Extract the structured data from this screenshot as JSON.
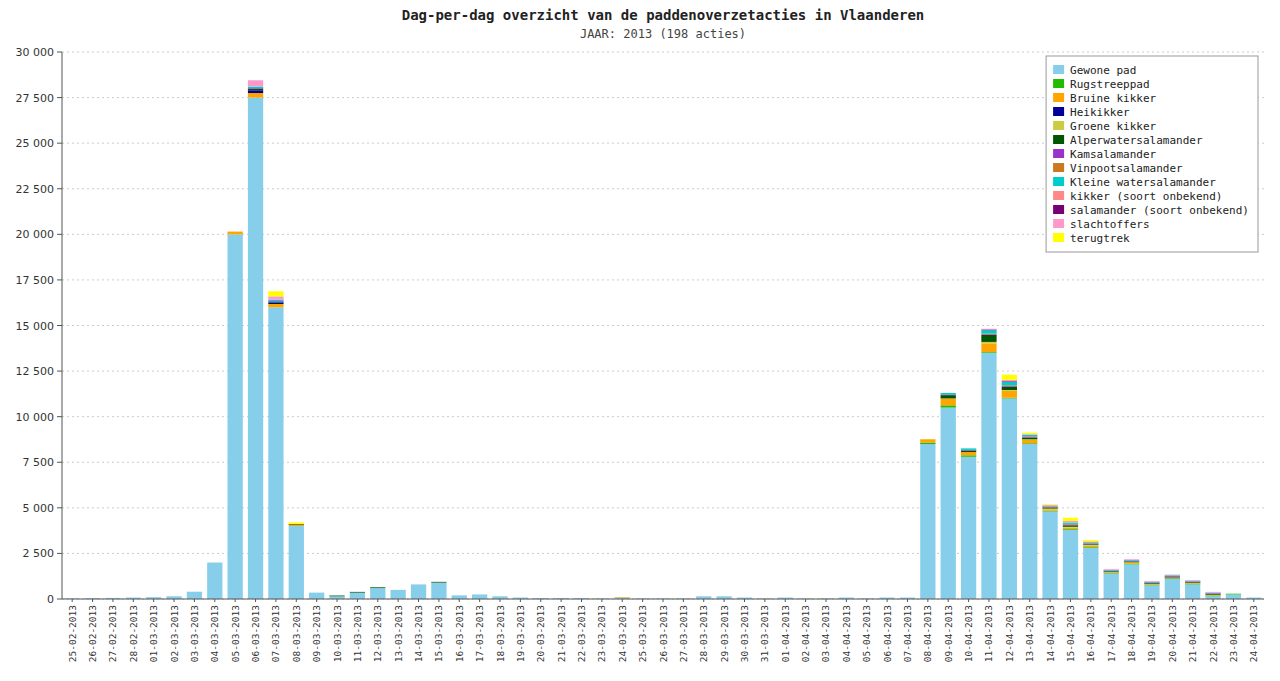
{
  "chart_data": {
    "type": "bar",
    "stacked": true,
    "title": "Dag-per-dag overzicht van de paddenoverzetacties in Vlaanderen",
    "subtitle": "JAAR: 2013 (198 acties)",
    "grid": true,
    "legend": "upper right",
    "ylim": [
      0,
      30000
    ],
    "yticks": [
      0,
      {
        "value": 2500,
        "label": "2 500"
      },
      {
        "value": 5000,
        "label": "5 000"
      },
      {
        "value": 7500,
        "label": "7 500"
      },
      {
        "value": 10000,
        "label": "10 000"
      },
      {
        "value": 12500,
        "label": "12 500"
      },
      {
        "value": 15000,
        "label": "15 000"
      },
      {
        "value": 17500,
        "label": "17 500"
      },
      {
        "value": 20000,
        "label": "20 000"
      },
      {
        "value": 22500,
        "label": "22 500"
      },
      {
        "value": 25000,
        "label": "25 000"
      },
      {
        "value": 27500,
        "label": "27 500"
      },
      {
        "value": 30000,
        "label": "30 000"
      }
    ],
    "categories": [
      "25-02-2013",
      "26-02-2013",
      "27-02-2013",
      "28-02-2013",
      "01-03-2013",
      "02-03-2013",
      "03-03-2013",
      "04-03-2013",
      "05-03-2013",
      "06-03-2013",
      "07-03-2013",
      "08-03-2013",
      "09-03-2013",
      "10-03-2013",
      "11-03-2013",
      "12-03-2013",
      "13-03-2013",
      "14-03-2013",
      "15-03-2013",
      "16-03-2013",
      "17-03-2013",
      "18-03-2013",
      "19-03-2013",
      "20-03-2013",
      "21-03-2013",
      "22-03-2013",
      "23-03-2013",
      "24-03-2013",
      "25-03-2013",
      "26-03-2013",
      "27-03-2013",
      "28-03-2013",
      "29-03-2013",
      "30-03-2013",
      "31-03-2013",
      "01-04-2013",
      "02-04-2013",
      "03-04-2013",
      "04-04-2013",
      "05-04-2013",
      "06-04-2013",
      "07-04-2013",
      "08-04-2013",
      "09-04-2013",
      "10-04-2013",
      "11-04-2013",
      "12-04-2013",
      "13-04-2013",
      "14-04-2013",
      "15-04-2013",
      "16-04-2013",
      "17-04-2013",
      "18-04-2013",
      "19-04-2013",
      "20-04-2013",
      "21-04-2013",
      "22-04-2013",
      "23-04-2013",
      "24-04-2013"
    ],
    "series": [
      {
        "name": "Gewone pad",
        "color": "#87CEEB",
        "values": [
          30,
          50,
          60,
          80,
          100,
          150,
          400,
          2000,
          20000,
          27500,
          16000,
          4000,
          350,
          150,
          350,
          600,
          500,
          800,
          900,
          200,
          250,
          150,
          80,
          50,
          50,
          50,
          30,
          80,
          30,
          30,
          30,
          150,
          150,
          80,
          30,
          80,
          30,
          30,
          80,
          30,
          80,
          80,
          8500,
          10500,
          7800,
          13500,
          11000,
          8500,
          4800,
          3800,
          2800,
          1400,
          1900,
          750,
          1100,
          800,
          150,
          250,
          80
        ]
      },
      {
        "name": "Rugstreeppad",
        "color": "#22BB00",
        "values": [
          0,
          0,
          0,
          0,
          0,
          0,
          0,
          0,
          0,
          0,
          0,
          0,
          0,
          0,
          0,
          0,
          0,
          0,
          0,
          0,
          0,
          0,
          0,
          0,
          0,
          0,
          0,
          0,
          0,
          0,
          0,
          0,
          0,
          0,
          0,
          0,
          0,
          0,
          0,
          0,
          0,
          0,
          80,
          120,
          80,
          40,
          40,
          40,
          40,
          40,
          40,
          40,
          40,
          40,
          40,
          40,
          40,
          40,
          0
        ]
      },
      {
        "name": "Bruine kikker",
        "color": "#FFA500",
        "values": [
          0,
          0,
          0,
          0,
          0,
          0,
          0,
          0,
          150,
          250,
          180,
          80,
          0,
          0,
          0,
          0,
          0,
          0,
          0,
          0,
          0,
          0,
          0,
          0,
          0,
          0,
          0,
          30,
          0,
          0,
          0,
          0,
          0,
          0,
          0,
          0,
          0,
          0,
          0,
          0,
          0,
          0,
          180,
          380,
          180,
          480,
          380,
          180,
          80,
          80,
          80,
          40,
          80,
          40,
          40,
          40,
          40,
          0,
          0
        ]
      },
      {
        "name": "Heikikker",
        "color": "#000099",
        "values": [
          0,
          0,
          0,
          0,
          0,
          0,
          0,
          0,
          0,
          150,
          80,
          0,
          0,
          0,
          0,
          0,
          0,
          0,
          0,
          0,
          0,
          0,
          0,
          0,
          0,
          0,
          0,
          0,
          0,
          0,
          0,
          0,
          0,
          0,
          0,
          0,
          0,
          0,
          0,
          0,
          0,
          0,
          0,
          0,
          0,
          0,
          0,
          0,
          0,
          0,
          0,
          0,
          0,
          0,
          0,
          0,
          0,
          0,
          0
        ]
      },
      {
        "name": "Groene kikker",
        "color": "#CCCC44",
        "values": [
          0,
          0,
          0,
          0,
          0,
          0,
          0,
          0,
          0,
          0,
          0,
          0,
          0,
          0,
          0,
          0,
          0,
          0,
          0,
          0,
          0,
          0,
          0,
          0,
          0,
          0,
          0,
          0,
          0,
          0,
          0,
          0,
          0,
          0,
          0,
          0,
          0,
          0,
          0,
          0,
          0,
          0,
          0,
          0,
          0,
          80,
          40,
          40,
          40,
          40,
          40,
          0,
          0,
          0,
          0,
          0,
          0,
          0,
          0
        ]
      },
      {
        "name": "Alperwatersalamander",
        "color": "#005500",
        "values": [
          0,
          0,
          0,
          0,
          0,
          0,
          0,
          0,
          0,
          80,
          40,
          40,
          0,
          40,
          40,
          40,
          0,
          0,
          40,
          0,
          0,
          0,
          0,
          0,
          0,
          0,
          0,
          0,
          0,
          0,
          0,
          0,
          0,
          0,
          0,
          0,
          0,
          0,
          0,
          0,
          0,
          0,
          0,
          180,
          80,
          380,
          180,
          80,
          40,
          80,
          40,
          40,
          40,
          40,
          40,
          40,
          40,
          0,
          0
        ]
      },
      {
        "name": "Kamsalamander",
        "color": "#9932CC",
        "values": [
          0,
          0,
          0,
          0,
          0,
          0,
          0,
          0,
          0,
          40,
          40,
          0,
          0,
          0,
          0,
          0,
          0,
          0,
          0,
          0,
          0,
          0,
          0,
          0,
          0,
          0,
          0,
          0,
          0,
          0,
          0,
          0,
          0,
          0,
          0,
          0,
          0,
          0,
          0,
          0,
          0,
          0,
          0,
          40,
          40,
          40,
          40,
          40,
          40,
          40,
          40,
          40,
          40,
          40,
          40,
          40,
          40,
          0,
          0
        ]
      },
      {
        "name": "Vinpootsalamander",
        "color": "#CC7722",
        "values": [
          0,
          0,
          0,
          0,
          0,
          0,
          0,
          0,
          0,
          0,
          0,
          0,
          0,
          0,
          0,
          0,
          0,
          0,
          0,
          0,
          0,
          0,
          0,
          0,
          0,
          0,
          0,
          0,
          0,
          0,
          0,
          0,
          0,
          0,
          0,
          0,
          0,
          0,
          0,
          0,
          0,
          0,
          0,
          0,
          0,
          40,
          40,
          40,
          40,
          40,
          40,
          0,
          0,
          0,
          0,
          0,
          0,
          0,
          0
        ]
      },
      {
        "name": "Kleine watersalamander",
        "color": "#00CCCC",
        "values": [
          0,
          0,
          0,
          0,
          0,
          0,
          0,
          0,
          0,
          80,
          80,
          0,
          0,
          0,
          0,
          0,
          0,
          0,
          0,
          0,
          0,
          0,
          0,
          0,
          0,
          0,
          0,
          0,
          0,
          0,
          0,
          0,
          0,
          0,
          0,
          0,
          0,
          0,
          0,
          0,
          0,
          0,
          0,
          80,
          80,
          180,
          180,
          80,
          40,
          80,
          40,
          40,
          40,
          40,
          40,
          40,
          40,
          0,
          0
        ]
      },
      {
        "name": "kikker (soort onbekend)",
        "color": "#FF8888",
        "values": [
          0,
          0,
          0,
          0,
          0,
          0,
          0,
          0,
          0,
          0,
          0,
          0,
          0,
          0,
          0,
          0,
          0,
          0,
          0,
          0,
          0,
          0,
          0,
          0,
          0,
          0,
          0,
          0,
          0,
          0,
          0,
          0,
          0,
          0,
          0,
          0,
          0,
          0,
          0,
          0,
          0,
          0,
          0,
          0,
          0,
          0,
          0,
          0,
          0,
          0,
          0,
          0,
          0,
          0,
          0,
          0,
          0,
          0,
          0
        ]
      },
      {
        "name": "salamander (soort onbekend)",
        "color": "#770077",
        "values": [
          0,
          0,
          0,
          0,
          0,
          0,
          0,
          0,
          0,
          0,
          0,
          0,
          0,
          0,
          0,
          0,
          0,
          0,
          0,
          0,
          0,
          0,
          0,
          0,
          0,
          0,
          0,
          0,
          0,
          0,
          0,
          0,
          0,
          0,
          0,
          0,
          0,
          0,
          0,
          0,
          0,
          0,
          0,
          0,
          0,
          40,
          40,
          0,
          0,
          0,
          0,
          0,
          0,
          0,
          0,
          0,
          0,
          0,
          0
        ]
      },
      {
        "name": "slachtoffers",
        "color": "#FF99CC",
        "values": [
          0,
          0,
          0,
          0,
          0,
          0,
          0,
          0,
          0,
          350,
          180,
          0,
          0,
          0,
          0,
          0,
          0,
          0,
          0,
          0,
          0,
          0,
          0,
          0,
          0,
          0,
          0,
          0,
          0,
          0,
          0,
          0,
          0,
          0,
          0,
          0,
          0,
          0,
          0,
          0,
          0,
          0,
          0,
          0,
          0,
          40,
          80,
          40,
          40,
          80,
          40,
          40,
          40,
          40,
          40,
          40,
          40,
          0,
          0
        ]
      },
      {
        "name": "terugtrek",
        "color": "#FFFF00",
        "values": [
          0,
          0,
          0,
          0,
          0,
          0,
          0,
          0,
          0,
          0,
          280,
          80,
          0,
          0,
          0,
          0,
          0,
          0,
          0,
          0,
          0,
          0,
          0,
          0,
          0,
          0,
          0,
          0,
          0,
          0,
          0,
          0,
          0,
          0,
          0,
          0,
          0,
          0,
          0,
          0,
          0,
          0,
          0,
          0,
          0,
          0,
          280,
          80,
          40,
          180,
          80,
          0,
          0,
          0,
          0,
          0,
          0,
          0,
          0
        ]
      }
    ]
  }
}
